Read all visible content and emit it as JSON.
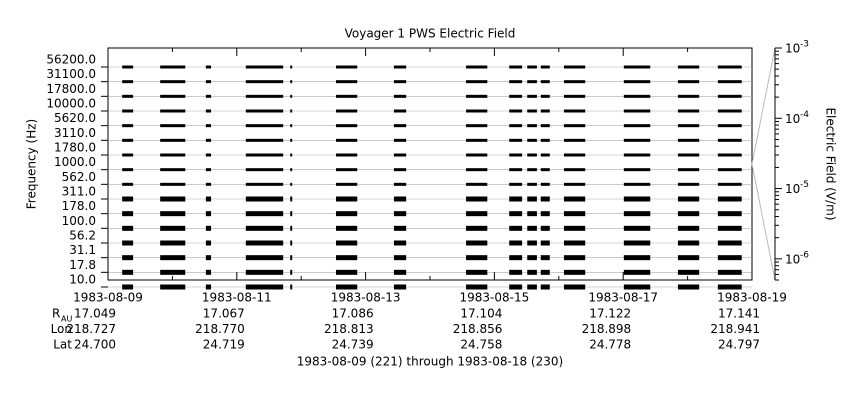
{
  "chart_data": {
    "type": "strip",
    "title": "Voyager 1 PWS Electric Field",
    "ylabel": "Frequency (Hz)",
    "y2label": "Electric Field (V/m)",
    "footer": "1983-08-09 (221) through 1983-08-18 (230)",
    "channels": [
      "56200.0",
      "31100.0",
      "17800.0",
      "10000.0",
      "5620.0",
      "3110.0",
      "1780.0",
      "1000.0",
      "562.0",
      "311.0",
      "178.0",
      "100.0",
      "56.2",
      "31.1",
      "17.8",
      "10.0"
    ],
    "xlim": [
      0,
      10
    ],
    "xticks": [
      {
        "value": 0,
        "label": "1983-08-09"
      },
      {
        "value": 2,
        "label": "1983-08-11"
      },
      {
        "value": 4,
        "label": "1983-08-13"
      },
      {
        "value": 6,
        "label": "1983-08-15"
      },
      {
        "value": 8,
        "label": "1983-08-17"
      },
      {
        "value": 10,
        "label": "1983-08-19"
      }
    ],
    "segments": [
      [
        0.22,
        0.39
      ],
      [
        0.81,
        1.2
      ],
      [
        1.52,
        1.6
      ],
      [
        2.14,
        2.72
      ],
      [
        2.83,
        2.86
      ],
      [
        3.54,
        3.87
      ],
      [
        4.44,
        4.63
      ],
      [
        5.56,
        5.89
      ],
      [
        6.23,
        6.43
      ],
      [
        6.51,
        6.66
      ],
      [
        6.72,
        6.86
      ],
      [
        7.08,
        7.41
      ],
      [
        8.01,
        8.42
      ],
      [
        8.85,
        9.18
      ],
      [
        9.47,
        9.84
      ]
    ],
    "ephemeris": [
      {
        "name": "R",
        "sub": "AU",
        "values": [
          "17.049",
          "17.067",
          "17.086",
          "17.104",
          "17.122",
          "17.141"
        ]
      },
      {
        "name": "Lon",
        "values": [
          "218.727",
          "218.770",
          "218.813",
          "218.856",
          "218.898",
          "218.941"
        ]
      },
      {
        "name": "Lat",
        "values": [
          "24.700",
          "24.719",
          "24.739",
          "24.758",
          "24.778",
          "24.797"
        ]
      }
    ],
    "y2log": true,
    "y2lim": [
      5e-07,
      0.001
    ],
    "y2ticks": [
      {
        "value": 0.001,
        "label": "10",
        "exponent": "-3"
      },
      {
        "value": 0.0001,
        "label": "10",
        "exponent": "-4"
      },
      {
        "value": 1e-05,
        "label": "10",
        "exponent": "-5"
      },
      {
        "value": 1e-06,
        "label": "10",
        "exponent": "-6"
      }
    ]
  }
}
